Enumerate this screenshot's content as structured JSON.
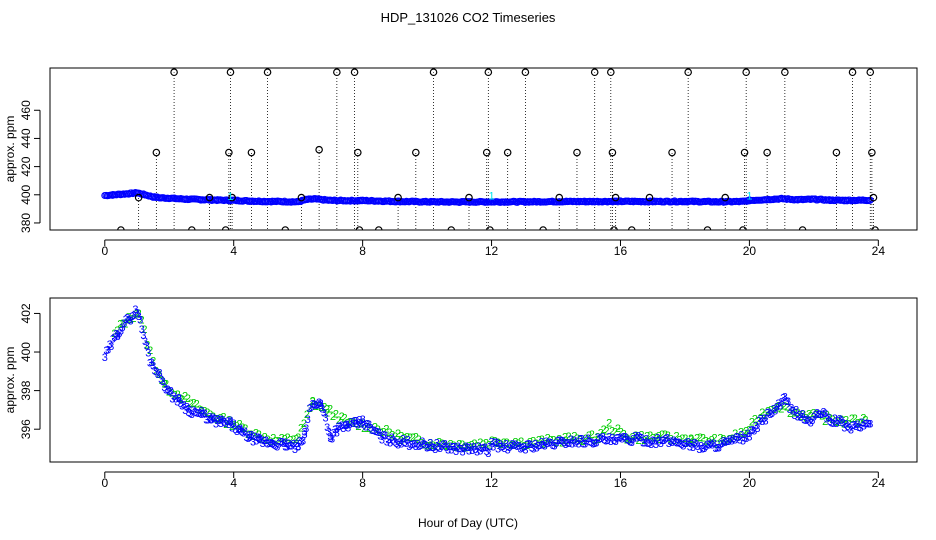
{
  "title": "HDP_131026  CO2 Timeseries",
  "xlabel": "Hour of Day (UTC)",
  "colors": {
    "outlier": "#000000",
    "series_main": "#0000ff",
    "series_top_alt": "#00e5ee",
    "series_bottom_alt": "#00cd00",
    "frame": "#000000"
  },
  "chart_data": [
    {
      "type": "scatter",
      "panel": "top",
      "ylabel": "approx. ppm",
      "xlim": [
        -1.7,
        25.2
      ],
      "ylim": [
        375,
        490
      ],
      "x_ticks": [
        0,
        4,
        8,
        12,
        16,
        20,
        24
      ],
      "x_tick_labels": [
        "0",
        "4",
        "8",
        "12",
        "16",
        "20",
        "24"
      ],
      "y_ticks": [
        380,
        400,
        420,
        440,
        460
      ],
      "y_tick_labels": [
        "380",
        "400",
        "420",
        "440",
        "460"
      ],
      "outlier_stem_base": 375,
      "baseline_series": {
        "marker": "o",
        "x": [
          0.0,
          0.25,
          0.5,
          0.75,
          1.0,
          1.25,
          1.5,
          1.75,
          2.0,
          2.5,
          3.0,
          3.5,
          4.0,
          4.5,
          5.0,
          5.5,
          6.0,
          6.25,
          6.5,
          7.0,
          7.5,
          8.0,
          8.5,
          9.0,
          10.0,
          11.0,
          12.0,
          13.0,
          14.0,
          15.0,
          15.8,
          16.0,
          17.0,
          18.0,
          19.0,
          19.8,
          20.0,
          20.5,
          21.0,
          21.5,
          22.0,
          22.5,
          23.0,
          23.75
        ],
        "y": [
          399.5,
          399.9,
          400.4,
          400.8,
          401.4,
          400.0,
          398.5,
          397.8,
          397.6,
          396.9,
          396.6,
          396.2,
          396.0,
          395.6,
          395.3,
          395.2,
          395.0,
          396.6,
          397.0,
          396.0,
          395.8,
          395.9,
          395.6,
          395.3,
          395.0,
          394.9,
          395.0,
          395.0,
          395.2,
          395.2,
          395.3,
          395.3,
          395.2,
          395.3,
          395.0,
          395.2,
          396.0,
          396.6,
          397.2,
          396.5,
          396.8,
          396.2,
          396.0,
          396.2
        ]
      },
      "outliers": {
        "marker": "o",
        "x": [
          0.5,
          1.05,
          1.6,
          2.15,
          2.7,
          3.25,
          3.75,
          3.85,
          3.9,
          3.95,
          4.55,
          5.05,
          5.6,
          6.1,
          6.65,
          7.2,
          7.75,
          7.85,
          7.9,
          8.5,
          9.1,
          9.65,
          10.2,
          10.75,
          11.3,
          11.85,
          11.9,
          11.95,
          12.5,
          13.05,
          13.6,
          14.1,
          14.65,
          15.2,
          15.7,
          15.75,
          15.8,
          15.85,
          16.35,
          16.9,
          17.6,
          18.1,
          18.7,
          19.25,
          19.8,
          19.85,
          19.9,
          20.55,
          21.1,
          21.65,
          22.7,
          23.2,
          23.75,
          23.8,
          23.85,
          23.9
        ],
        "y": [
          375,
          398,
          430,
          487,
          375,
          398,
          375,
          430,
          487,
          398,
          430,
          487,
          375,
          398,
          432,
          487,
          487,
          430,
          375,
          375,
          398,
          430,
          487,
          375,
          398,
          430,
          487,
          375,
          430,
          487,
          375,
          398,
          430,
          487,
          487,
          430,
          375,
          398,
          375,
          398,
          430,
          487,
          375,
          398,
          375,
          430,
          487,
          430,
          487,
          375,
          430,
          487,
          487,
          430,
          398,
          375
        ]
      },
      "alt_series": {
        "marker": "1",
        "x": [
          3.9,
          12.0,
          20.0
        ],
        "y": [
          399.0,
          399.5,
          399.5
        ]
      }
    },
    {
      "type": "scatter",
      "panel": "bottom",
      "ylabel": "approx. ppm",
      "xlim": [
        -1.7,
        25.2
      ],
      "ylim": [
        394.3,
        402.8
      ],
      "x_ticks": [
        0,
        4,
        8,
        12,
        16,
        20,
        24
      ],
      "x_tick_labels": [
        "0",
        "4",
        "8",
        "12",
        "16",
        "20",
        "24"
      ],
      "y_ticks": [
        396,
        398,
        400,
        402
      ],
      "y_tick_labels": [
        "396",
        "398",
        "400",
        "402"
      ],
      "series": [
        {
          "marker": "3",
          "color_key": "series_main",
          "x": [
            0.0,
            0.2,
            0.4,
            0.6,
            0.8,
            1.0,
            1.2,
            1.4,
            1.7,
            2.0,
            2.3,
            2.6,
            3.0,
            3.3,
            3.6,
            3.9,
            4.2,
            4.5,
            4.8,
            5.2,
            5.6,
            6.0,
            6.2,
            6.35,
            6.5,
            6.7,
            6.85,
            7.0,
            7.2,
            7.5,
            7.8,
            8.0,
            8.3,
            8.6,
            9.0,
            9.5,
            10.0,
            10.5,
            11.0,
            11.5,
            11.9,
            12.0,
            12.3,
            12.6,
            13.0,
            13.5,
            14.0,
            14.5,
            15.0,
            15.5,
            15.8,
            16.0,
            16.5,
            17.0,
            17.5,
            18.0,
            18.5,
            19.0,
            19.5,
            20.0,
            20.3,
            20.6,
            20.9,
            21.1,
            21.3,
            21.6,
            21.9,
            22.2,
            22.5,
            22.8,
            23.1,
            23.4,
            23.75
          ],
          "y": [
            399.8,
            400.4,
            401.0,
            401.5,
            401.8,
            402.2,
            400.9,
            399.6,
            398.8,
            397.9,
            397.5,
            397.0,
            396.8,
            396.5,
            396.4,
            396.3,
            395.9,
            395.6,
            395.4,
            395.3,
            395.2,
            395.1,
            395.7,
            397.0,
            397.4,
            397.3,
            396.6,
            395.6,
            396.0,
            396.2,
            396.3,
            396.4,
            396.0,
            395.6,
            395.4,
            395.3,
            395.2,
            395.1,
            395.0,
            395.0,
            394.9,
            395.3,
            395.1,
            395.1,
            395.1,
            395.2,
            395.3,
            395.4,
            395.4,
            395.5,
            395.4,
            395.5,
            395.5,
            395.4,
            395.4,
            395.3,
            395.1,
            395.2,
            395.4,
            395.7,
            396.3,
            396.8,
            397.2,
            397.6,
            397.0,
            396.7,
            396.4,
            396.9,
            396.5,
            396.4,
            396.1,
            396.2,
            396.3
          ]
        },
        {
          "marker": "2",
          "color_key": "series_bottom_alt",
          "x": [
            0.3,
            0.55,
            0.8,
            1.05,
            1.5,
            1.9,
            2.4,
            3.0,
            3.5,
            4.0,
            4.6,
            5.4,
            6.0,
            6.45,
            6.9,
            7.6,
            8.2,
            9.2,
            10.1,
            11.2,
            12.2,
            13.2,
            14.3,
            15.3,
            15.65,
            16.2,
            17.2,
            18.2,
            19.2,
            19.9,
            20.4,
            20.9,
            21.4,
            21.9,
            22.4,
            23.0,
            23.6
          ],
          "y": [
            400.9,
            401.5,
            401.8,
            402.1,
            399.5,
            398.2,
            397.7,
            397.0,
            396.6,
            396.3,
            395.8,
            395.4,
            395.6,
            397.4,
            397.0,
            396.3,
            396.2,
            395.6,
            395.3,
            395.2,
            395.4,
            395.3,
            395.5,
            395.6,
            396.2,
            395.6,
            395.6,
            395.5,
            395.4,
            395.9,
            396.8,
            397.3,
            396.9,
            396.7,
            396.6,
            396.4,
            396.5
          ]
        }
      ]
    }
  ]
}
